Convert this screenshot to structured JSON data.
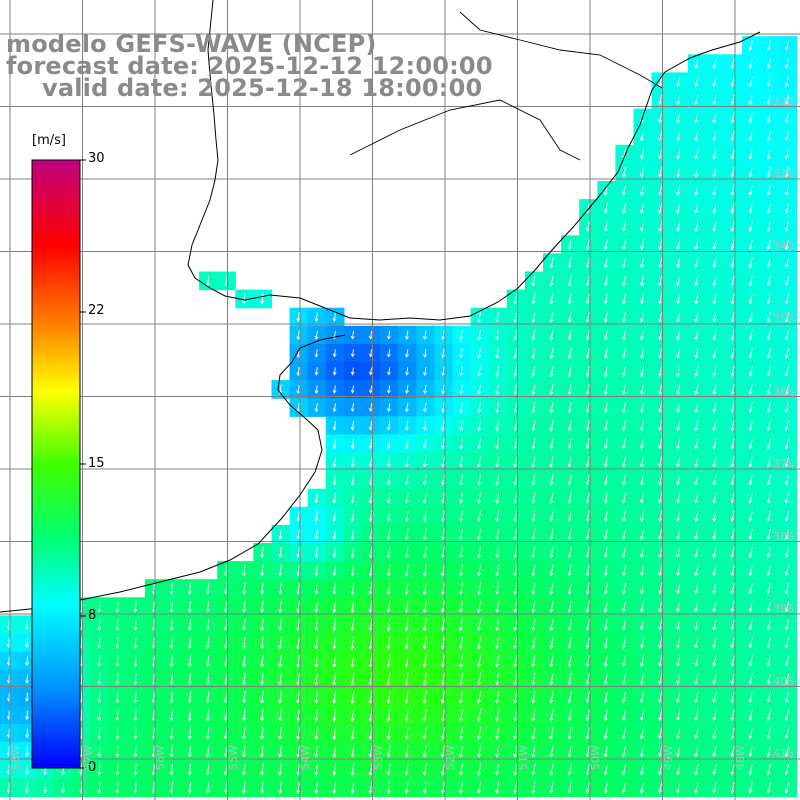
{
  "title": {
    "line1": "modelo GEFS-WAVE (NCEP)",
    "line2": "forecast date: 2025-12-12 12:00:00",
    "line3": "valid date: 2025-12-18 18:00:00"
  },
  "colorbar": {
    "unit": "[m/s]",
    "ticks": [
      "30",
      "22",
      "15",
      "8",
      "0"
    ],
    "min": 0,
    "max": 30,
    "colors": [
      "#0000ff",
      "#00ffff",
      "#00ff00",
      "#ffff00",
      "#ff8000",
      "#ff0000",
      "#c0007f"
    ]
  },
  "lat_labels": [
    "32S",
    "33S",
    "34S",
    "35S",
    "36S",
    "37S",
    "38S",
    "39S",
    "40S",
    "41S"
  ],
  "lon_labels": [
    "58W",
    "57W",
    "56W",
    "55W",
    "54W",
    "53W",
    "52W",
    "51W",
    "50W",
    "49W",
    "48W"
  ],
  "map": {
    "land_color": "#ffffff",
    "coast_color": "#000000",
    "grid_color": "#808080",
    "arrow_color": "#ffffff"
  }
}
